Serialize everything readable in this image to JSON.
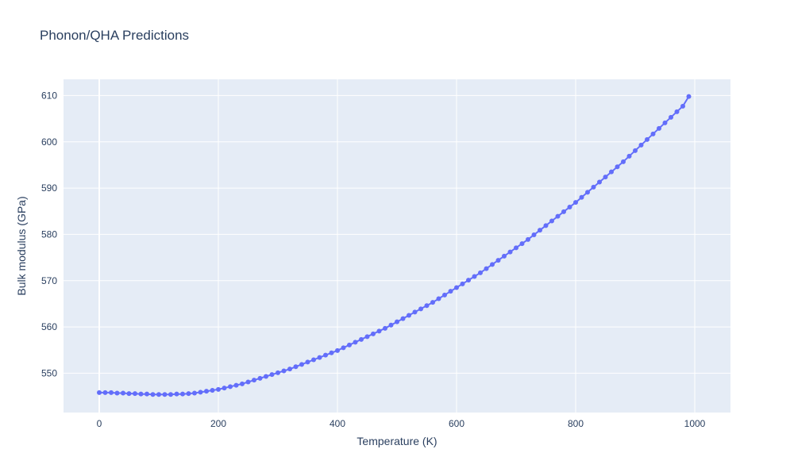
{
  "chart_data": {
    "type": "line",
    "title": "Phonon/QHA Predictions",
    "xlabel": "Temperature (K)",
    "ylabel": "Bulk modulus (GPa)",
    "xlim": [
      -60,
      1060
    ],
    "ylim": [
      541.5,
      613.5
    ],
    "x_ticks": [
      0,
      200,
      400,
      600,
      800,
      1000
    ],
    "y_ticks": [
      550,
      560,
      570,
      580,
      590,
      600,
      610
    ],
    "grid": true,
    "legend": "none",
    "colors": {
      "series": "#636efa",
      "plot_bg": "#e5ecf6",
      "grid": "#ffffff",
      "text": "#2a3f5f"
    },
    "series": [
      {
        "mode": "lines+markers",
        "x": [
          0,
          10,
          20,
          30,
          40,
          50,
          60,
          70,
          80,
          90,
          100,
          110,
          120,
          130,
          140,
          150,
          160,
          170,
          180,
          190,
          200,
          210,
          220,
          230,
          240,
          250,
          260,
          270,
          280,
          290,
          300,
          310,
          320,
          330,
          340,
          350,
          360,
          370,
          380,
          390,
          400,
          410,
          420,
          430,
          440,
          450,
          460,
          470,
          480,
          490,
          500,
          510,
          520,
          530,
          540,
          550,
          560,
          570,
          580,
          590,
          600,
          610,
          620,
          630,
          640,
          650,
          660,
          670,
          680,
          690,
          700,
          710,
          720,
          730,
          740,
          750,
          760,
          770,
          780,
          790,
          800,
          810,
          820,
          830,
          840,
          850,
          860,
          870,
          880,
          890,
          900,
          910,
          920,
          930,
          940,
          950,
          960,
          970,
          980,
          990
        ],
        "y": [
          545.8,
          545.8,
          545.8,
          545.7,
          545.7,
          545.6,
          545.6,
          545.5,
          545.5,
          545.4,
          545.4,
          545.4,
          545.4,
          545.5,
          545.5,
          545.6,
          545.7,
          545.9,
          546.1,
          546.3,
          546.5,
          546.8,
          547.1,
          547.4,
          547.7,
          548.1,
          548.5,
          548.9,
          549.3,
          549.7,
          550.1,
          550.5,
          550.9,
          551.4,
          551.9,
          552.4,
          552.9,
          553.4,
          553.9,
          554.4,
          554.9,
          555.5,
          556.1,
          556.7,
          557.3,
          557.9,
          558.5,
          559.1,
          559.7,
          560.4,
          561.1,
          561.8,
          562.5,
          563.2,
          563.9,
          564.6,
          565.3,
          566.1,
          566.9,
          567.7,
          568.5,
          569.3,
          570.1,
          570.9,
          571.7,
          572.6,
          573.5,
          574.4,
          575.3,
          576.2,
          577.1,
          578.0,
          578.9,
          579.9,
          580.9,
          581.9,
          582.9,
          583.9,
          584.9,
          585.9,
          586.9,
          588.0,
          589.1,
          590.2,
          591.3,
          592.4,
          593.5,
          594.6,
          595.7,
          596.9,
          598.1,
          599.3,
          600.5,
          601.7,
          602.9,
          604.1,
          605.3,
          606.5,
          607.7,
          609.8
        ]
      }
    ]
  }
}
